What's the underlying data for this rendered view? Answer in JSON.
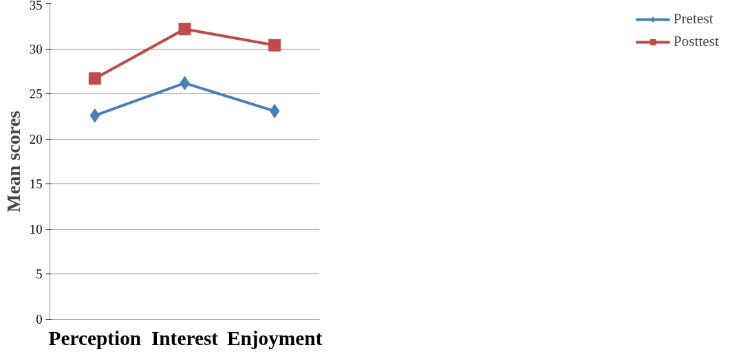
{
  "chart_data": {
    "type": "line",
    "ylabel": "Mean scores",
    "categories": [
      "Perception",
      "Interest",
      "Enjoyment"
    ],
    "series": [
      {
        "name": "Pretest",
        "color": "#4a7ebb",
        "values": [
          22.6,
          26.2,
          23.1
        ],
        "marker": "diamond"
      },
      {
        "name": "Posttest",
        "color": "#be4b48",
        "values": [
          26.7,
          32.2,
          30.4
        ],
        "marker": "square"
      }
    ],
    "ylim": [
      0,
      35
    ],
    "yticks": [
      0,
      5,
      10,
      15,
      20,
      25,
      30,
      35
    ],
    "grid": "y",
    "legend": "right"
  }
}
